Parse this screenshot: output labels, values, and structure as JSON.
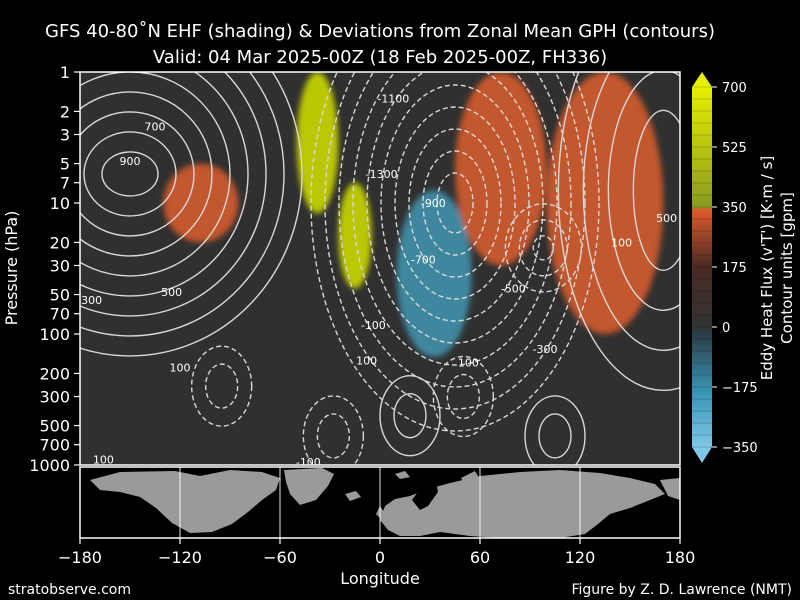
{
  "chart_data": {
    "type": "heatmap",
    "title": "GFS 40-80˚N EHF (shading) & Deviations from Zonal Mean GPH (contours)",
    "subtitle": "Valid: 04 Mar 2025-00Z  (18 Feb 2025-00Z, FH336)",
    "xlabel": "Longitude",
    "ylabel": "Pressure (hPa)",
    "xlim": [
      -180,
      180
    ],
    "ylim": [
      1000,
      1
    ],
    "y_scale": "log",
    "x_ticks": [
      "−180",
      "−120",
      "−60",
      "0",
      "60",
      "120",
      "180"
    ],
    "x_tick_values": [
      -180,
      -120,
      -60,
      0,
      60,
      120,
      180
    ],
    "y_ticks": [
      "1",
      "2",
      "3",
      "5",
      "7",
      "10",
      "20",
      "30",
      "50",
      "70",
      "100",
      "200",
      "300",
      "500",
      "700",
      "1000"
    ],
    "y_tick_values": [
      1,
      2,
      3,
      5,
      7,
      10,
      20,
      30,
      50,
      70,
      100,
      200,
      300,
      500,
      700,
      1000
    ],
    "colorbar": {
      "label_1": "Eddy Heat Flux (v'T')  [K·m / s]",
      "label_2": "Contour units [gpm]",
      "ticks": [
        "700",
        "525",
        "350",
        "175",
        "0",
        "−175",
        "−350"
      ],
      "tick_values": [
        700,
        525,
        350,
        175,
        0,
        -175,
        -350
      ],
      "colors": {
        "yellow": "#d4d400",
        "orange": "#e05a2a",
        "neutral": "#333333",
        "blue": "#3a95b8"
      }
    },
    "ehf_features": [
      {
        "lon_min": -50,
        "lon_max": -25,
        "p_top": 1,
        "p_bottom": 12,
        "value": 600
      },
      {
        "lon_min": -25,
        "lon_max": -5,
        "p_top": 7,
        "p_bottom": 45,
        "value": 650
      },
      {
        "lon_min": 10,
        "lon_max": 55,
        "p_top": 8,
        "p_bottom": 150,
        "value": -250
      },
      {
        "lon_min": -130,
        "lon_max": -85,
        "p_top": 5,
        "p_bottom": 20,
        "value": 200
      },
      {
        "lon_min": 100,
        "lon_max": 170,
        "p_top": 1,
        "p_bottom": 100,
        "value": 250
      },
      {
        "lon_min": 45,
        "lon_max": 100,
        "p_top": 1,
        "p_bottom": 30,
        "value": 220
      }
    ],
    "contour_labels": [
      {
        "text": "700",
        "lon": -135,
        "p": 2.6
      },
      {
        "text": "900",
        "lon": -150,
        "p": 4.8
      },
      {
        "text": "-1100",
        "lon": 8,
        "p": 1.6
      },
      {
        "text": "-1300",
        "lon": 1,
        "p": 6.0
      },
      {
        "text": "-900",
        "lon": 32,
        "p": 10
      },
      {
        "text": "-700",
        "lon": 26,
        "p": 27
      },
      {
        "text": "500",
        "lon": -125,
        "p": 48
      },
      {
        "text": "300",
        "lon": -173,
        "p": 55
      },
      {
        "text": "-500",
        "lon": 80,
        "p": 45
      },
      {
        "text": "100",
        "lon": 145,
        "p": 20
      },
      {
        "text": "500",
        "lon": 172,
        "p": 13
      },
      {
        "text": "-100",
        "lon": -4,
        "p": 85
      },
      {
        "text": "100",
        "lon": -8,
        "p": 160
      },
      {
        "text": "100",
        "lon": 53,
        "p": 165
      },
      {
        "text": "-300",
        "lon": 99,
        "p": 130
      },
      {
        "text": "100",
        "lon": -120,
        "p": 180
      },
      {
        "text": "-100",
        "lon": -43,
        "p": 950
      },
      {
        "text": "100",
        "lon": -166,
        "p": 910
      }
    ]
  },
  "map_panel": {
    "xlim": [
      -180,
      180
    ]
  },
  "footer": {
    "left": "stratobserve.com",
    "right": "Figure by Z. D. Lawrence (NMT)"
  }
}
